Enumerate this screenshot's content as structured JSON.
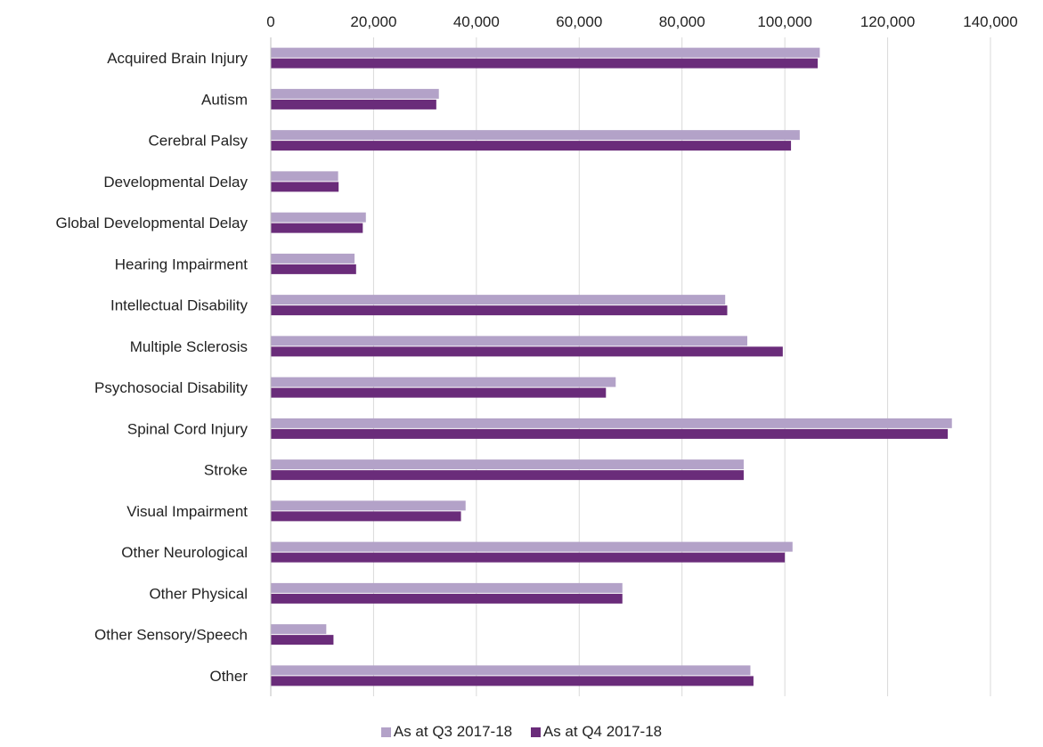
{
  "chart_data": {
    "type": "bar",
    "orientation": "horizontal",
    "categories": [
      "Acquired Brain Injury",
      "Autism",
      "Cerebral Palsy",
      "Developmental Delay",
      "Global Developmental Delay",
      "Hearing Impairment",
      "Intellectual Disability",
      "Multiple Sclerosis",
      "Psychosocial Disability",
      "Spinal Cord Injury",
      "Stroke",
      "Visual Impairment",
      "Other Neurological",
      "Other Physical",
      "Other Sensory/Speech",
      "Other"
    ],
    "series": [
      {
        "name": "As at Q3 2017-18",
        "color": "#b3a2c8",
        "values": [
          106800,
          32700,
          102900,
          13100,
          18500,
          16300,
          88400,
          92700,
          67100,
          132500,
          92000,
          37900,
          101500,
          68400,
          10800,
          93300
        ]
      },
      {
        "name": "As at Q4 2017-18",
        "color": "#6a2c7a",
        "values": [
          106400,
          32200,
          101200,
          13200,
          17900,
          16600,
          88800,
          99600,
          65200,
          131700,
          92000,
          37000,
          100000,
          68400,
          12200,
          93900
        ]
      }
    ],
    "title": "",
    "xlabel": "",
    "ylabel": "",
    "xlim": [
      0,
      140000
    ],
    "ticks": [
      "0",
      "20,000",
      "40,000",
      "60,000",
      "80,000",
      "100,000",
      "120,000",
      "140,000"
    ],
    "tick_values": [
      0,
      20000,
      40000,
      60000,
      80000,
      100000,
      120000,
      140000
    ],
    "grid": "vertical",
    "axis_position": "top",
    "legend_position": "bottom"
  }
}
